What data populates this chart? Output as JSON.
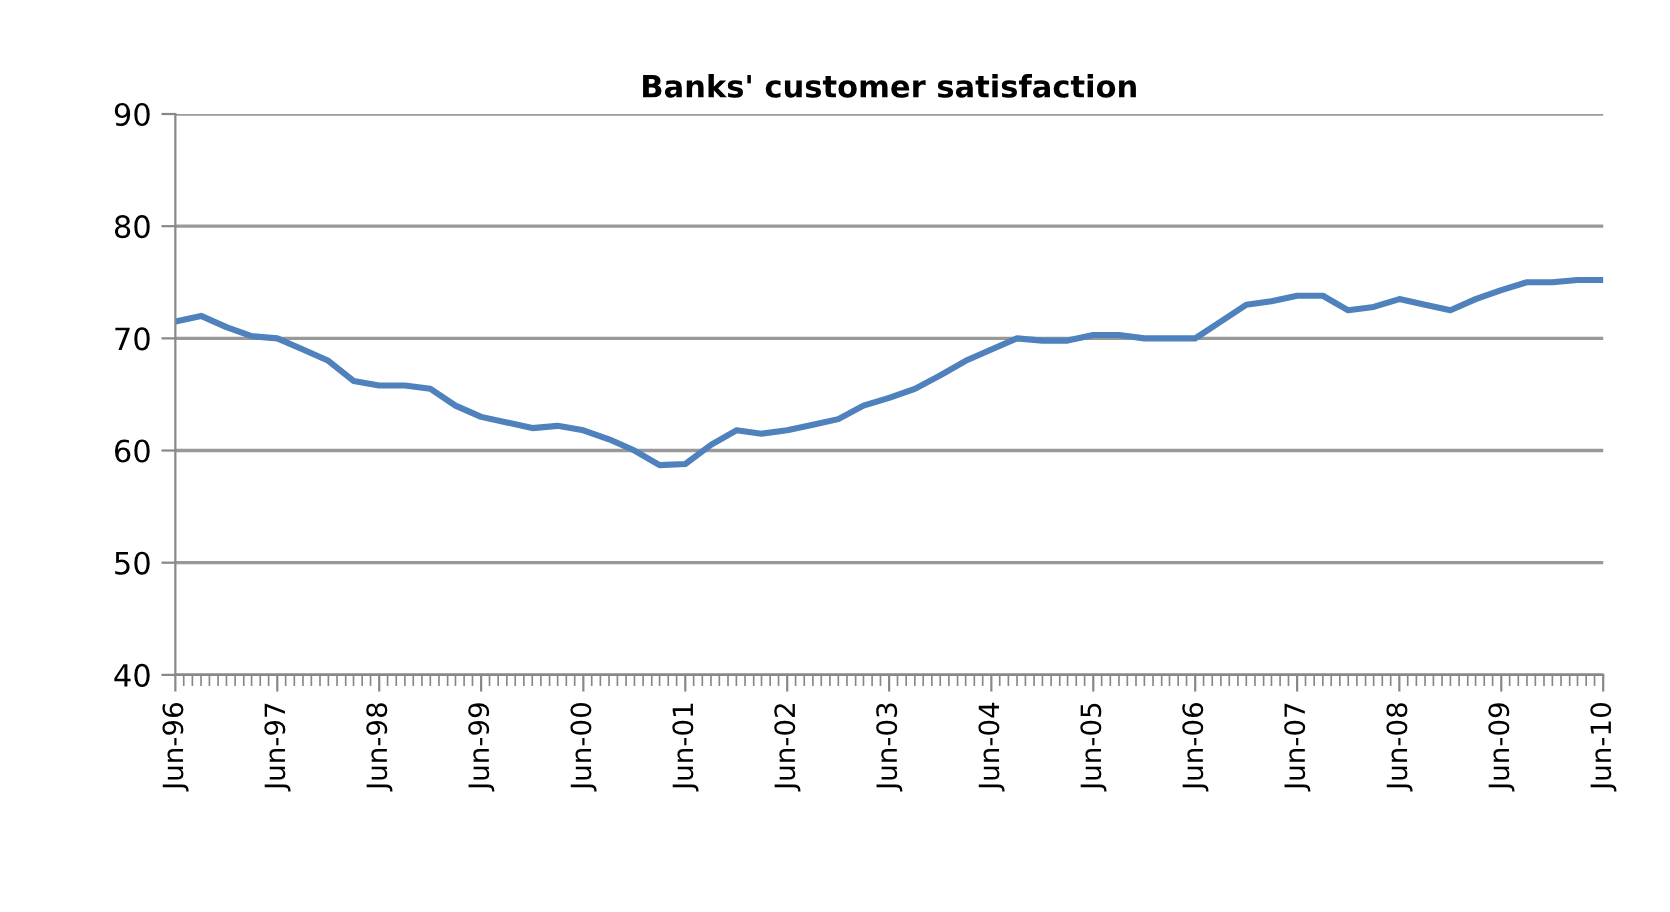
{
  "chart_data": {
    "type": "line",
    "title": "Banks' customer satisfaction",
    "x": [
      "1996-06",
      "1996-09",
      "1996-12",
      "1997-03",
      "1997-06",
      "1997-09",
      "1997-12",
      "1998-03",
      "1998-06",
      "1998-09",
      "1998-12",
      "1999-03",
      "1999-06",
      "1999-09",
      "1999-12",
      "2000-03",
      "2000-06",
      "2000-09",
      "2000-12",
      "2001-03",
      "2001-06",
      "2001-09",
      "2001-12",
      "2002-03",
      "2002-06",
      "2002-09",
      "2002-12",
      "2003-03",
      "2003-06",
      "2003-09",
      "2003-12",
      "2004-03",
      "2004-06",
      "2004-09",
      "2004-12",
      "2005-03",
      "2005-06",
      "2005-09",
      "2005-12",
      "2006-03",
      "2006-06",
      "2006-09",
      "2006-12",
      "2007-03",
      "2007-06",
      "2007-09",
      "2007-12",
      "2008-03",
      "2008-06",
      "2008-09",
      "2008-12",
      "2009-03",
      "2009-06",
      "2009-09",
      "2009-12",
      "2010-03",
      "2010-06"
    ],
    "series": [
      {
        "color": "#4f81bd",
        "values": [
          71.5,
          72,
          71,
          70.2,
          70,
          69,
          68,
          66.2,
          65.8,
          65.8,
          65.5,
          64,
          63,
          62.5,
          62,
          62.2,
          61.8,
          61,
          60,
          58.7,
          58.8,
          60.5,
          61.8,
          61.5,
          61.8,
          62.3,
          62.8,
          64,
          64.7,
          65.5,
          66.7,
          68,
          69,
          70,
          69.8,
          69.8,
          70.3,
          70.3,
          70,
          70,
          70,
          71.5,
          73,
          73.3,
          73.8,
          73.8,
          72.5,
          72.8,
          73.5,
          73,
          72.5,
          73.5,
          74.3,
          75,
          75,
          75.2,
          75.2
        ]
      }
    ],
    "xlim": [
      "1996-06",
      "2010-06"
    ],
    "xticks": [
      {
        "value": "1996-06",
        "label": "Jun-96"
      },
      {
        "value": "1997-06",
        "label": "Jun-97"
      },
      {
        "value": "1998-06",
        "label": "Jun-98"
      },
      {
        "value": "1999-06",
        "label": "Jun-99"
      },
      {
        "value": "2000-06",
        "label": "Jun-00"
      },
      {
        "value": "2001-06",
        "label": "Jun-01"
      },
      {
        "value": "2002-06",
        "label": "Jun-02"
      },
      {
        "value": "2003-06",
        "label": "Jun-03"
      },
      {
        "value": "2004-06",
        "label": "Jun-04"
      },
      {
        "value": "2005-06",
        "label": "Jun-05"
      },
      {
        "value": "2006-06",
        "label": "Jun-06"
      },
      {
        "value": "2007-06",
        "label": "Jun-07"
      },
      {
        "value": "2008-06",
        "label": "Jun-08"
      },
      {
        "value": "2009-06",
        "label": "Jun-09"
      },
      {
        "value": "2010-06",
        "label": "Jun-10"
      }
    ],
    "ylim": [
      40,
      90
    ],
    "yticks": [
      40,
      50,
      60,
      70,
      80,
      90
    ],
    "grid": "y"
  }
}
